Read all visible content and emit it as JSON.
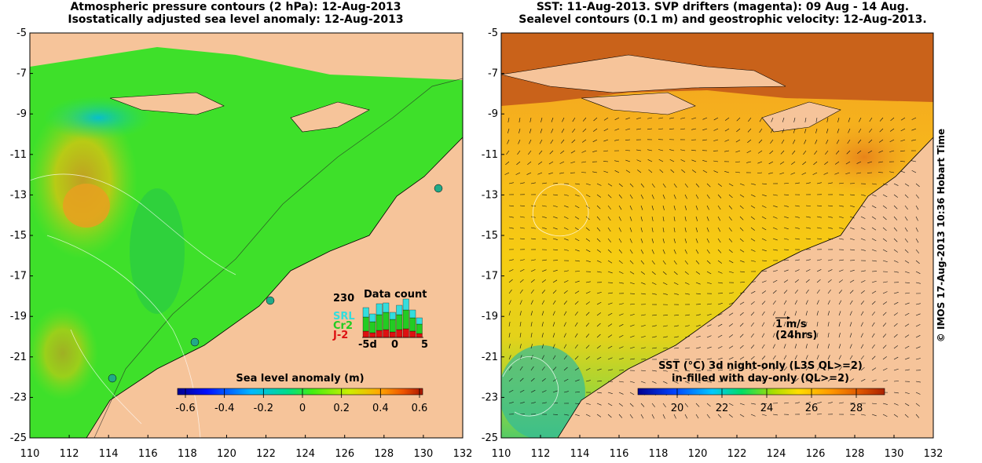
{
  "left_panel": {
    "title_line1": "Atmospheric pressure contours (2 hPa): 12-Aug-2013",
    "title_line2": "Isostatically adjusted sea level anomaly: 12-Aug-2013",
    "colorbar_label": "Sea level anomaly (m)",
    "colorbar_ticks": [
      "-0.6",
      "-0.4",
      "-0.2",
      "0",
      "0.2",
      "0.4",
      "0.6"
    ],
    "data_count": {
      "title": "Data count",
      "max": "230",
      "series": [
        "SRL",
        "Cr2",
        "J-2"
      ],
      "series_colors": [
        "#33dddd",
        "#22cc22",
        "#dd1111"
      ],
      "x_ticks": [
        "-5d",
        "0",
        "5"
      ]
    }
  },
  "right_panel": {
    "title_line1": "SST: 11-Aug-2013. SVP drifters (magenta): 09 Aug - 14 Aug.",
    "title_line2": "Sealevel contours (0.1 m) and geostrophic velocity: 12-Aug-2013.",
    "scale_speed": "1 m/s",
    "scale_time": "(24hrs)",
    "colorbar_label_line1": "SST (°C)  3d night-only (L3S QL>=2)",
    "colorbar_label_line2": "in-filled with day-only (QL>=2)",
    "colorbar_ticks": [
      "20",
      "22",
      "24",
      "26",
      "28"
    ]
  },
  "axes": {
    "lat_ticks": [
      "-5",
      "-7",
      "-9",
      "-11",
      "-13",
      "-15",
      "-17",
      "-19",
      "-21",
      "-23",
      "-25"
    ],
    "lon_ticks": [
      "110",
      "112",
      "114",
      "116",
      "118",
      "120",
      "122",
      "124",
      "126",
      "128",
      "130",
      "132"
    ]
  },
  "copyright": "© IMOS 17-Aug-2013 10:36 Hobart Time",
  "colors": {
    "land": "#f6c49a",
    "sea_green": "#22dd22",
    "sst_orange": "#f2a81e",
    "sst_warm": "#c9621a"
  }
}
